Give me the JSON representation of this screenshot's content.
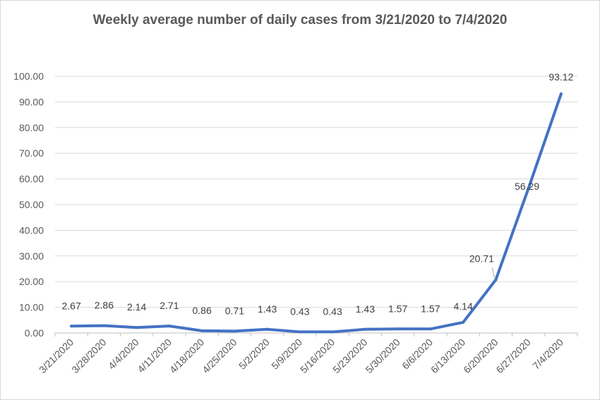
{
  "chart_data": {
    "type": "line",
    "title": "Weekly average number of daily cases from 3/21/2020 to 7/4/2020",
    "xlabel": "",
    "ylabel": "",
    "categories": [
      "3/21/2020",
      "3/28/2020",
      "4/4/2020",
      "4/11/2020",
      "4/18/2020",
      "4/25/2020",
      "5/2/2020",
      "5/9/2020",
      "5/16/2020",
      "5/23/2020",
      "5/30/2020",
      "6/6/2020",
      "6/13/2020",
      "6/20/2020",
      "6/27/2020",
      "7/4/2020"
    ],
    "series": [
      {
        "values": [
          2.67,
          2.86,
          2.14,
          2.71,
          0.86,
          0.71,
          1.43,
          0.43,
          0.43,
          1.43,
          1.57,
          1.57,
          4.14,
          20.71,
          56.29,
          93.12
        ],
        "labels": [
          "2.67",
          "2.86",
          "2.14",
          "2.71",
          "0.86",
          "0.71",
          "1.43",
          "0.43",
          "0.43",
          "1.43",
          "1.57",
          "1.57",
          "4.14",
          "20.71",
          "56.29",
          "93.12"
        ]
      }
    ],
    "yticks": [
      "0.00",
      "10.00",
      "20.00",
      "30.00",
      "40.00",
      "50.00",
      "60.00",
      "70.00",
      "80.00",
      "90.00",
      "100.00"
    ],
    "ylim": [
      0,
      100
    ],
    "grid": true,
    "legend": "none",
    "line_color": "#4472c4"
  }
}
